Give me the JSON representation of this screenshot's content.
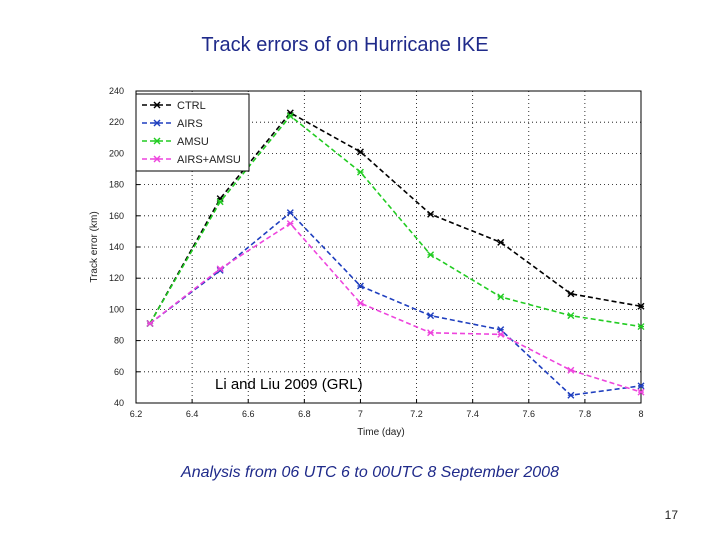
{
  "slide": {
    "title": "Track errors of on Hurricane IKE",
    "caption": "Analysis from 06 UTC 6 to 00UTC 8 September 2008",
    "page_number": "17"
  },
  "chart_data": {
    "type": "line",
    "title": "Track errors of on Hurricane IKE",
    "xlabel": "Time (day)",
    "ylabel": "Track error (km)",
    "xlim": [
      6.2,
      8.0
    ],
    "ylim": [
      40,
      240
    ],
    "xticks": [
      6.2,
      6.4,
      6.6,
      6.8,
      7.0,
      7.2,
      7.4,
      7.6,
      7.8,
      8.0
    ],
    "xtick_labels": [
      "6.2",
      "6.4",
      "6.6",
      "6.8",
      "7",
      "7.2",
      "7.4",
      "7.6",
      "7.8",
      "8"
    ],
    "yticks": [
      40,
      60,
      80,
      100,
      120,
      140,
      160,
      180,
      200,
      220,
      240
    ],
    "ytick_labels": [
      "40",
      "60",
      "80",
      "100",
      "120",
      "140",
      "160",
      "180",
      "200",
      "220",
      "240"
    ],
    "grid": true,
    "legend_position": "top-left",
    "annotation": "Li and Liu 2009 (GRL)",
    "x": [
      6.25,
      6.5,
      6.75,
      7.0,
      7.25,
      7.5,
      7.75,
      8.0
    ],
    "series": [
      {
        "name": "CTRL",
        "color": "#000000",
        "values": [
          91,
          171,
          226,
          201,
          161,
          143,
          110,
          102
        ]
      },
      {
        "name": "AIRS",
        "color": "#1f3fbf",
        "values": [
          91,
          125,
          162,
          115,
          96,
          87,
          45,
          51
        ]
      },
      {
        "name": "AMSU",
        "color": "#22cc22",
        "values": [
          91,
          169,
          224,
          188,
          135,
          108,
          96,
          89
        ]
      },
      {
        "name": "AIRS+AMSU",
        "color": "#ee44dd",
        "values": [
          91,
          126,
          155,
          104,
          85,
          84,
          61,
          47
        ]
      }
    ]
  }
}
